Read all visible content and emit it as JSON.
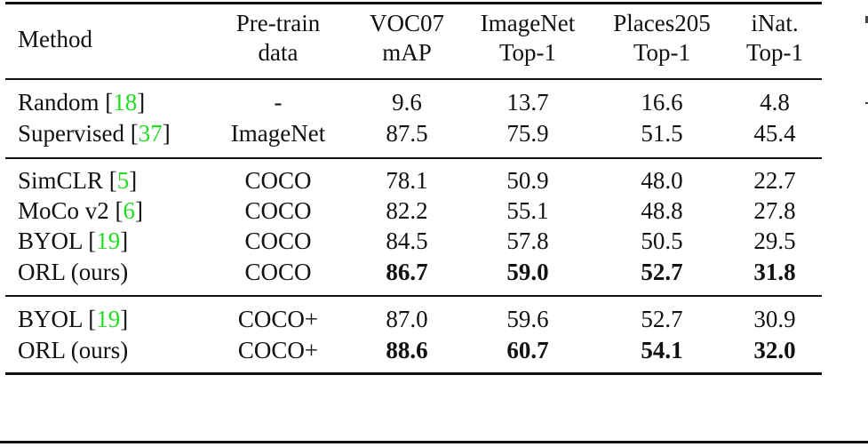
{
  "table": {
    "columns": [
      {
        "id": "method",
        "line1": "Method",
        "line2": ""
      },
      {
        "id": "pretrain",
        "line1": "Pre-train",
        "line2": "data"
      },
      {
        "id": "voc07",
        "line1": "VOC07",
        "line2": "mAP"
      },
      {
        "id": "imagenet",
        "line1": "ImageNet",
        "line2": "Top-1"
      },
      {
        "id": "places205",
        "line1": "Places205",
        "line2": "Top-1"
      },
      {
        "id": "inat",
        "line1": "iNat.",
        "line2": "Top-1"
      }
    ],
    "groups": [
      {
        "rows": [
          {
            "method": "Random",
            "cite": "18",
            "pretrain": "-",
            "voc07": "9.6",
            "imagenet": "13.7",
            "places205": "16.6",
            "inat": "4.8",
            "bold": false
          },
          {
            "method": "Supervised",
            "cite": "37",
            "pretrain": "ImageNet",
            "voc07": "87.5",
            "imagenet": "75.9",
            "places205": "51.5",
            "inat": "45.4",
            "bold": false
          }
        ]
      },
      {
        "rows": [
          {
            "method": "SimCLR",
            "cite": "5",
            "pretrain": "COCO",
            "voc07": "78.1",
            "imagenet": "50.9",
            "places205": "48.0",
            "inat": "22.7",
            "bold": false
          },
          {
            "method": "MoCo v2",
            "cite": "6",
            "pretrain": "COCO",
            "voc07": "82.2",
            "imagenet": "55.1",
            "places205": "48.8",
            "inat": "27.8",
            "bold": false
          },
          {
            "method": "BYOL",
            "cite": "19",
            "pretrain": "COCO",
            "voc07": "84.5",
            "imagenet": "57.8",
            "places205": "50.5",
            "inat": "29.5",
            "bold": false
          },
          {
            "method": "ORL (ours)",
            "cite": "",
            "pretrain": "COCO",
            "voc07": "86.7",
            "imagenet": "59.0",
            "places205": "52.7",
            "inat": "31.8",
            "bold": true
          }
        ]
      },
      {
        "rows": [
          {
            "method": "BYOL",
            "cite": "19",
            "pretrain": "COCO+",
            "voc07": "87.0",
            "imagenet": "59.6",
            "places205": "52.7",
            "inat": "30.9",
            "bold": false
          },
          {
            "method": "ORL (ours)",
            "cite": "",
            "pretrain": "COCO+",
            "voc07": "88.6",
            "imagenet": "60.7",
            "places205": "54.1",
            "inat": "32.0",
            "bold": true
          }
        ]
      }
    ],
    "colors": {
      "citation": "#22dd22",
      "text": "#111111",
      "rule": "#111111"
    }
  }
}
